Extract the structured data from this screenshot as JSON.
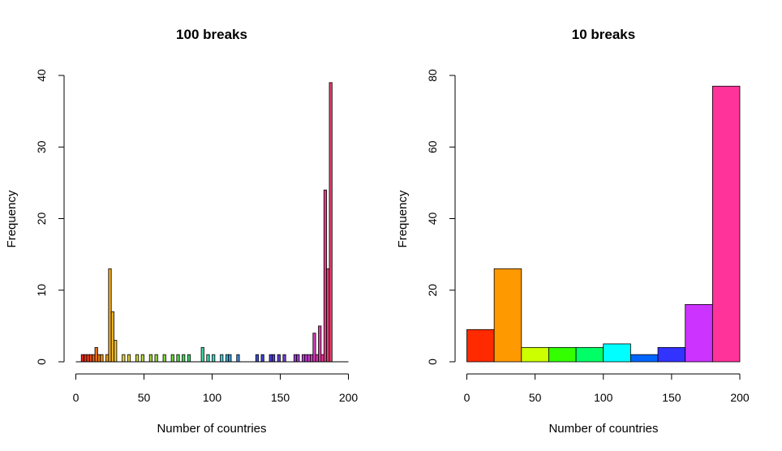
{
  "chart_data": [
    {
      "type": "bar",
      "title": "100 breaks",
      "xlabel": "Number of countries",
      "ylabel": "Frequency",
      "xlim": [
        0,
        200
      ],
      "ylim": [
        0,
        40
      ],
      "xticks": [
        "0",
        "50",
        "100",
        "150",
        "200"
      ],
      "yticks": [
        "0",
        "10",
        "20",
        "30",
        "40"
      ],
      "bin_width": 2,
      "bins": [
        {
          "x0": 4,
          "x1": 6,
          "count": 1,
          "color": "#E8221A"
        },
        {
          "x0": 6,
          "x1": 8,
          "count": 1,
          "color": "#E8301A"
        },
        {
          "x0": 8,
          "x1": 10,
          "count": 1,
          "color": "#E8401A"
        },
        {
          "x0": 10,
          "x1": 12,
          "count": 1,
          "color": "#E8501A"
        },
        {
          "x0": 12,
          "x1": 14,
          "count": 1,
          "color": "#E8601A"
        },
        {
          "x0": 14,
          "x1": 16,
          "count": 2,
          "color": "#E8701A"
        },
        {
          "x0": 16,
          "x1": 18,
          "count": 1,
          "color": "#E8801A"
        },
        {
          "x0": 18,
          "x1": 20,
          "count": 1,
          "color": "#E8901A"
        },
        {
          "x0": 22,
          "x1": 24,
          "count": 1,
          "color": "#E8A01A"
        },
        {
          "x0": 24,
          "x1": 26,
          "count": 13,
          "color": "#EDAA22"
        },
        {
          "x0": 26,
          "x1": 28,
          "count": 7,
          "color": "#EDB428"
        },
        {
          "x0": 28,
          "x1": 30,
          "count": 3,
          "color": "#EDBE2E"
        },
        {
          "x0": 34,
          "x1": 36,
          "count": 1,
          "color": "#E9C83A"
        },
        {
          "x0": 38,
          "x1": 40,
          "count": 1,
          "color": "#E1D03E"
        },
        {
          "x0": 44,
          "x1": 46,
          "count": 1,
          "color": "#CFD43E"
        },
        {
          "x0": 48,
          "x1": 50,
          "count": 1,
          "color": "#BBD43E"
        },
        {
          "x0": 54,
          "x1": 56,
          "count": 1,
          "color": "#A6D43E"
        },
        {
          "x0": 58,
          "x1": 60,
          "count": 1,
          "color": "#92D43E"
        },
        {
          "x0": 64,
          "x1": 66,
          "count": 1,
          "color": "#7ED43E"
        },
        {
          "x0": 70,
          "x1": 72,
          "count": 1,
          "color": "#6AD442"
        },
        {
          "x0": 74,
          "x1": 76,
          "count": 1,
          "color": "#56D44C"
        },
        {
          "x0": 78,
          "x1": 80,
          "count": 1,
          "color": "#44D45A"
        },
        {
          "x0": 82,
          "x1": 84,
          "count": 1,
          "color": "#3ED46E"
        },
        {
          "x0": 92,
          "x1": 94,
          "count": 2,
          "color": "#3ED49A"
        },
        {
          "x0": 96,
          "x1": 98,
          "count": 1,
          "color": "#3ED4B0"
        },
        {
          "x0": 100,
          "x1": 102,
          "count": 1,
          "color": "#3ED4C4"
        },
        {
          "x0": 106,
          "x1": 108,
          "count": 1,
          "color": "#3EC8D4"
        },
        {
          "x0": 110,
          "x1": 112,
          "count": 1,
          "color": "#3EB0D4"
        },
        {
          "x0": 112,
          "x1": 114,
          "count": 1,
          "color": "#3E9CD4"
        },
        {
          "x0": 118,
          "x1": 120,
          "count": 1,
          "color": "#3E86D4"
        },
        {
          "x0": 132,
          "x1": 134,
          "count": 1,
          "color": "#3E50D4"
        },
        {
          "x0": 136,
          "x1": 138,
          "count": 1,
          "color": "#3E40D4"
        },
        {
          "x0": 142,
          "x1": 144,
          "count": 1,
          "color": "#4A3ED4"
        },
        {
          "x0": 144,
          "x1": 146,
          "count": 1,
          "color": "#563ED4"
        },
        {
          "x0": 148,
          "x1": 150,
          "count": 1,
          "color": "#623ED4"
        },
        {
          "x0": 152,
          "x1": 154,
          "count": 1,
          "color": "#743ED4"
        },
        {
          "x0": 160,
          "x1": 162,
          "count": 1,
          "color": "#9A3ED4"
        },
        {
          "x0": 162,
          "x1": 164,
          "count": 1,
          "color": "#A63ED4"
        },
        {
          "x0": 166,
          "x1": 168,
          "count": 1,
          "color": "#B83ED4"
        },
        {
          "x0": 168,
          "x1": 170,
          "count": 1,
          "color": "#C23ED0"
        },
        {
          "x0": 170,
          "x1": 172,
          "count": 1,
          "color": "#C83EC8"
        },
        {
          "x0": 172,
          "x1": 174,
          "count": 1,
          "color": "#CE3EC0"
        },
        {
          "x0": 174,
          "x1": 176,
          "count": 4,
          "color": "#D43EB8"
        },
        {
          "x0": 176,
          "x1": 178,
          "count": 1,
          "color": "#D83EAE"
        },
        {
          "x0": 178,
          "x1": 180,
          "count": 5,
          "color": "#DC3EA2"
        },
        {
          "x0": 180,
          "x1": 182,
          "count": 1,
          "color": "#E03E94"
        },
        {
          "x0": 182,
          "x1": 184,
          "count": 24,
          "color": "#E43E86"
        },
        {
          "x0": 184,
          "x1": 186,
          "count": 13,
          "color": "#E63E78"
        },
        {
          "x0": 186,
          "x1": 188,
          "count": 39,
          "color": "#E83E6A"
        }
      ]
    },
    {
      "type": "bar",
      "title": "10 breaks",
      "xlabel": "Number of countries",
      "ylabel": "Frequency",
      "xlim": [
        0,
        200
      ],
      "ylim": [
        0,
        80
      ],
      "xticks": [
        "0",
        "50",
        "100",
        "150",
        "200"
      ],
      "yticks": [
        "0",
        "20",
        "40",
        "60",
        "80"
      ],
      "bin_width": 20,
      "bins": [
        {
          "x0": 0,
          "x1": 20,
          "count": 9,
          "color": "#FF2A00"
        },
        {
          "x0": 20,
          "x1": 40,
          "count": 26,
          "color": "#FF9900"
        },
        {
          "x0": 40,
          "x1": 60,
          "count": 4,
          "color": "#CCFF00"
        },
        {
          "x0": 60,
          "x1": 80,
          "count": 4,
          "color": "#33FF00"
        },
        {
          "x0": 80,
          "x1": 100,
          "count": 4,
          "color": "#00FF66"
        },
        {
          "x0": 100,
          "x1": 120,
          "count": 5,
          "color": "#00FFFF"
        },
        {
          "x0": 120,
          "x1": 140,
          "count": 2,
          "color": "#0066FF"
        },
        {
          "x0": 140,
          "x1": 160,
          "count": 4,
          "color": "#3333FF"
        },
        {
          "x0": 160,
          "x1": 180,
          "count": 16,
          "color": "#CC33FF"
        },
        {
          "x0": 180,
          "x1": 200,
          "count": 77,
          "color": "#FF3399"
        }
      ]
    }
  ]
}
